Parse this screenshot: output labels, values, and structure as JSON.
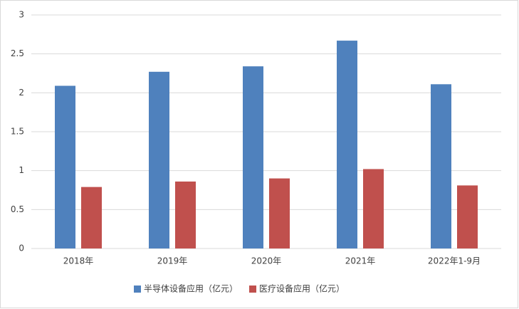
{
  "chart_data": {
    "type": "bar",
    "categories": [
      "2018年",
      "2019年",
      "2020年",
      "2021年",
      "2022年1-9月"
    ],
    "series": [
      {
        "name": "半导体设备应用（亿元）",
        "color": "#4f81bd",
        "values": [
          2.09,
          2.27,
          2.34,
          2.67,
          2.11
        ]
      },
      {
        "name": "医疗设备应用（亿元）",
        "color": "#c0504d",
        "values": [
          0.79,
          0.86,
          0.9,
          1.02,
          0.81
        ]
      }
    ],
    "ylim": [
      0,
      3
    ],
    "yticks": [
      0,
      0.5,
      1,
      1.5,
      2,
      2.5,
      3
    ],
    "grid": true,
    "legend": "bottom"
  }
}
